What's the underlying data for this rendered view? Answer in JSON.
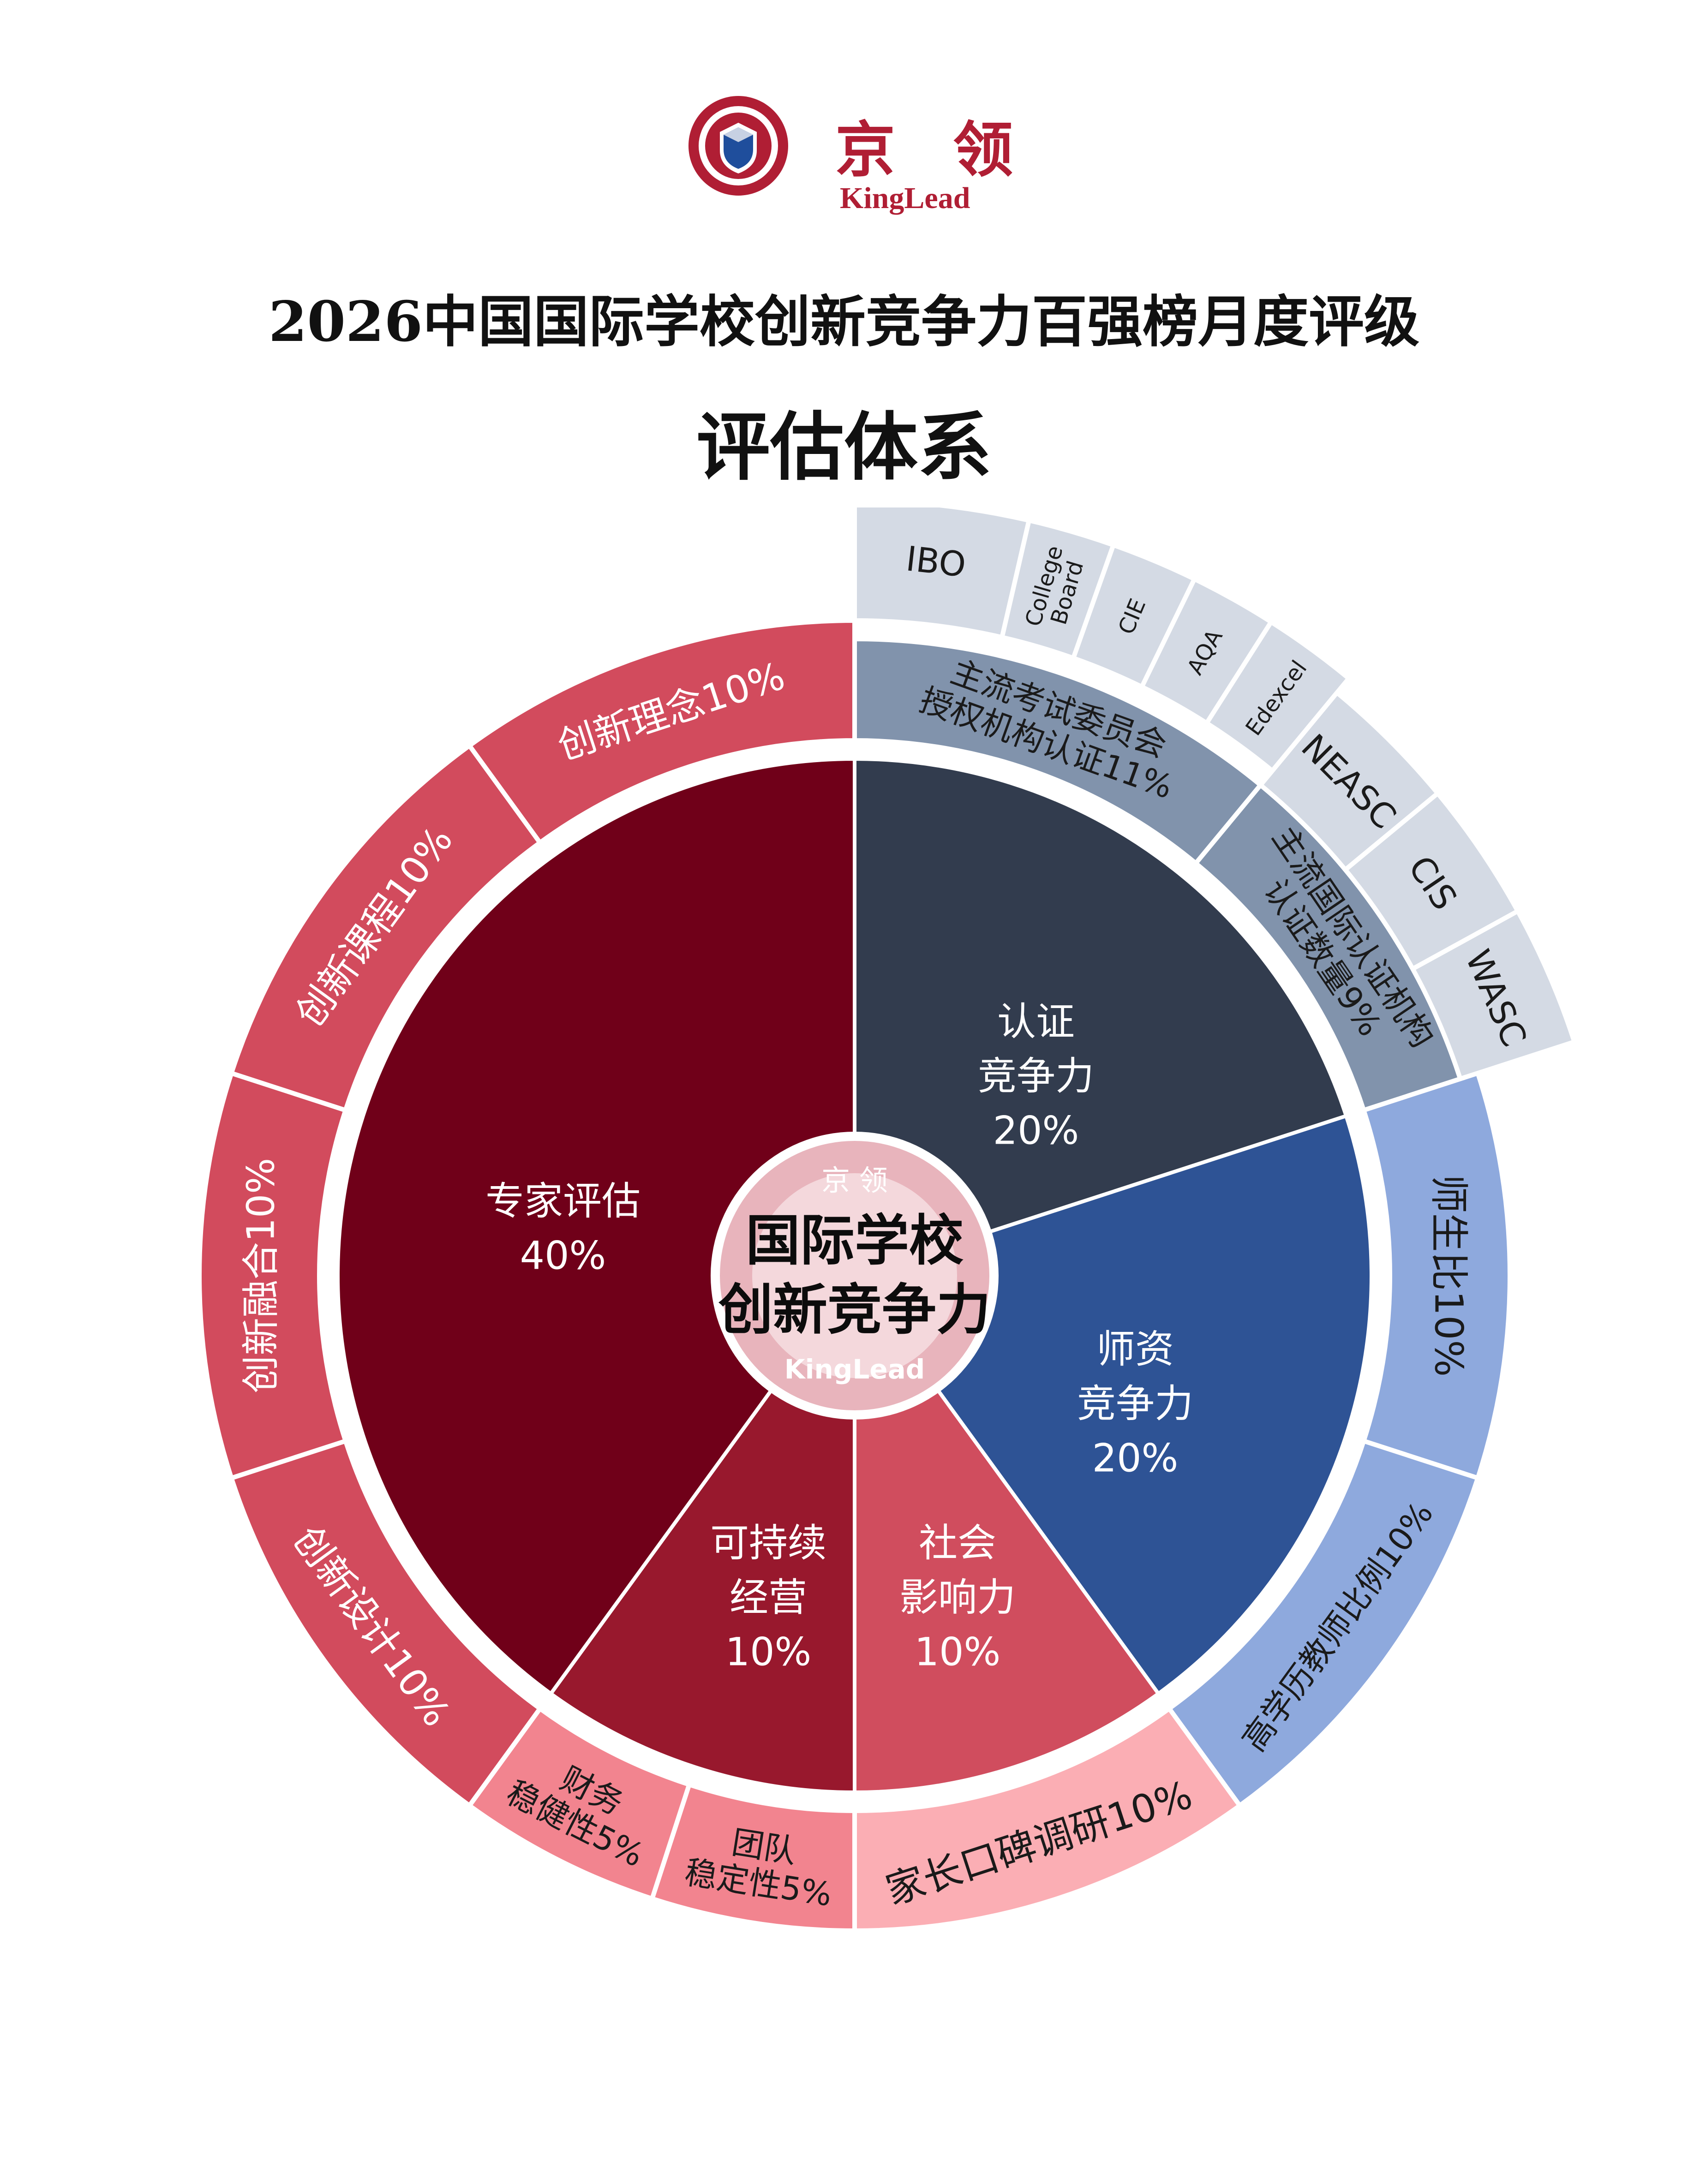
{
  "brand": {
    "cn": "京 领",
    "en": "KingLead",
    "logo_top_text": "京 领",
    "logo_bottom_text": "KingLead"
  },
  "title": "2026中国国际学校创新竞争力百强榜月度评级",
  "subtitle": "评估体系",
  "center": {
    "line1": "国际学校",
    "line2": "创新竞争力"
  },
  "colors": {
    "expert": "#700019",
    "sustain": "#98182d",
    "social": "#d04d5e",
    "teacher": "#2e5395",
    "cert": "#323c4e",
    "ring_red": "#d24b5d",
    "ring_pink": "#f2848f",
    "ring_pink_light": "#fbaeb4",
    "ring_blue": "#8ea9dd",
    "ring_steel": "#8193ac",
    "top_ring": "#d4dae4",
    "brand": "#b01e34"
  },
  "chart_data": {
    "type": "pie",
    "inner": [
      {
        "label": [
          "专家评估",
          "40%"
        ],
        "value": 40,
        "color": "expert"
      },
      {
        "label": [
          "认证",
          "竞争力",
          "20%"
        ],
        "value": 20,
        "color": "cert"
      },
      {
        "label": [
          "师资",
          "竞争力",
          "20%"
        ],
        "value": 20,
        "color": "teacher"
      },
      {
        "label": [
          "社会",
          "影响力",
          "10%"
        ],
        "value": 10,
        "color": "social"
      },
      {
        "label": [
          "可持续",
          "经营",
          "10%"
        ],
        "value": 10,
        "color": "sustain"
      }
    ],
    "outer": [
      {
        "label": [
          "主流考试委员会",
          "授权机构认证11%"
        ],
        "value": 11,
        "parent": "认证竞争力"
      },
      {
        "label": [
          "主流国际认证机构",
          "认证数量9%"
        ],
        "value": 9,
        "parent": "认证竞争力"
      },
      {
        "label": [
          "师生比10%"
        ],
        "value": 10,
        "parent": "师资竞争力"
      },
      {
        "label": [
          "高学历教师比例10%"
        ],
        "value": 10,
        "parent": "师资竞争力"
      },
      {
        "label": [
          "家长口碑调研10%"
        ],
        "value": 10,
        "parent": "社会影响力"
      },
      {
        "label": [
          "团队",
          "稳定性5%"
        ],
        "value": 5,
        "parent": "可持续经营"
      },
      {
        "label": [
          "财务",
          "稳健性5%"
        ],
        "value": 5,
        "parent": "可持续经营"
      },
      {
        "label": [
          "创新设计10%"
        ],
        "value": 10,
        "parent": "专家评估"
      },
      {
        "label": [
          "创新融合10%"
        ],
        "value": 10,
        "parent": "专家评估"
      },
      {
        "label": [
          "创新课程10%"
        ],
        "value": 10,
        "parent": "专家评估"
      },
      {
        "label": [
          "创新理念10%"
        ],
        "value": 10,
        "parent": "专家评估"
      }
    ],
    "top_ring": {
      "exam_boards": [
        "IBO",
        "College Board",
        "CIE",
        "AQA",
        "Edexcel"
      ],
      "accreditation_bodies": [
        "NEASC",
        "CIS",
        "WASC"
      ]
    }
  }
}
